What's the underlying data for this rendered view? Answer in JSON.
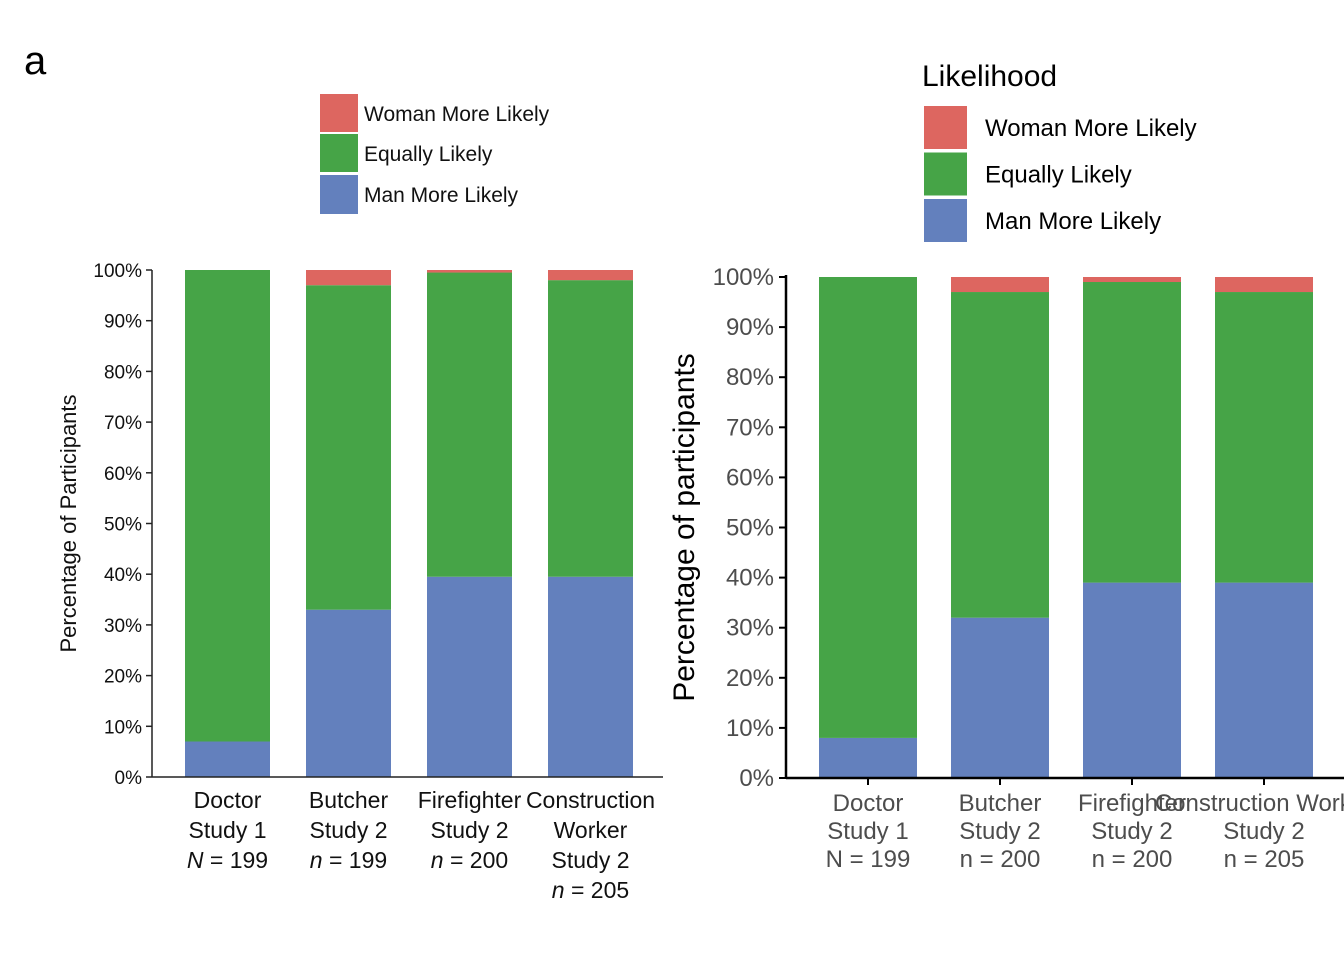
{
  "panel_label": "a",
  "chart_data": [
    {
      "type": "bar",
      "stacked": true,
      "ylabel": "Percentage of Participants",
      "ylim": [
        0,
        100
      ],
      "yticks": [
        "0%",
        "10%",
        "20%",
        "30%",
        "40%",
        "50%",
        "60%",
        "70%",
        "80%",
        "90%",
        "100%"
      ],
      "categories": [
        [
          "Doctor",
          "Study 1",
          "N = 199"
        ],
        [
          "Butcher",
          "Study 2",
          "n = 199"
        ],
        [
          "Firefighter",
          "Study 2",
          "n = 200"
        ],
        [
          "Construction",
          "Worker",
          "Study 2",
          "n = 205"
        ]
      ],
      "series": [
        {
          "name": "Man More Likely",
          "color": "#6380bd",
          "values": [
            7,
            33,
            39.5,
            39.5
          ]
        },
        {
          "name": "Equally Likely",
          "color": "#46a447",
          "values": [
            93,
            64,
            60,
            58.5
          ]
        },
        {
          "name": "Woman More Likely",
          "color": "#dd6660",
          "values": [
            0,
            3,
            0.5,
            2
          ]
        }
      ],
      "legend": {
        "position": "top",
        "items": [
          "Woman More Likely",
          "Equally Likely",
          "Man More Likely"
        ]
      }
    },
    {
      "type": "bar",
      "stacked": true,
      "ylabel": "Percentage of participants",
      "ylim": [
        0,
        100
      ],
      "yticks": [
        "0%",
        "10%",
        "20%",
        "30%",
        "40%",
        "50%",
        "60%",
        "70%",
        "80%",
        "90%",
        "100%"
      ],
      "categories": [
        [
          "Doctor",
          "Study 1",
          "N = 199"
        ],
        [
          "Butcher",
          "Study 2",
          "n = 200"
        ],
        [
          "Firefighter",
          "Study 2",
          "n = 200"
        ],
        [
          "Construction Worker",
          "Study 2",
          "n = 205"
        ]
      ],
      "series": [
        {
          "name": "Man More Likely",
          "color": "#6380bd",
          "values": [
            8,
            32,
            39,
            39
          ]
        },
        {
          "name": "Equally Likely",
          "color": "#46a447",
          "values": [
            92,
            65,
            60,
            58
          ]
        },
        {
          "name": "Woman More Likely",
          "color": "#dd6660",
          "values": [
            0,
            3,
            1,
            3
          ]
        }
      ],
      "legend": {
        "position": "top-right",
        "title": "Likelihood",
        "items": [
          "Woman More Likely",
          "Equally Likely",
          "Man More Likely"
        ]
      }
    }
  ]
}
